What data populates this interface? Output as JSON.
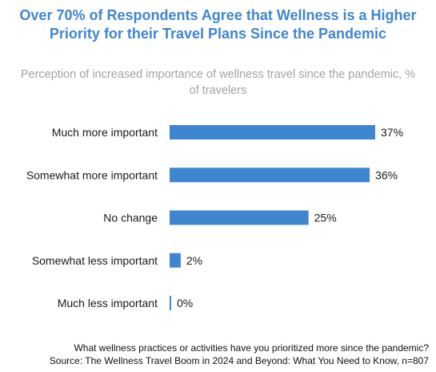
{
  "chart_data": {
    "type": "bar",
    "orientation": "horizontal",
    "title": "Over 70% of Respondents Agree that Wellness is a Higher Priority for their Travel Plans Since the Pandemic",
    "subtitle": "Perception of increased importance of wellness travel since the pandemic, % of travelers",
    "categories": [
      "Much more important",
      "Somewhat more important",
      "No change",
      "Somewhat less important",
      "Much less important"
    ],
    "values": [
      37,
      36,
      25,
      2,
      0
    ],
    "data_labels": [
      "37%",
      "36%",
      "25%",
      "2%",
      "0%"
    ],
    "unit": "%",
    "xlim": [
      0,
      37
    ],
    "grid": false,
    "legend": "none",
    "bar_color": "#3f86d0"
  },
  "footer": {
    "question": "What wellness practices or activities have you prioritized more since the pandemic?",
    "source": "Source: The Wellness Travel Boom in 2024 and Beyond: What You Need to Know, n=807"
  }
}
